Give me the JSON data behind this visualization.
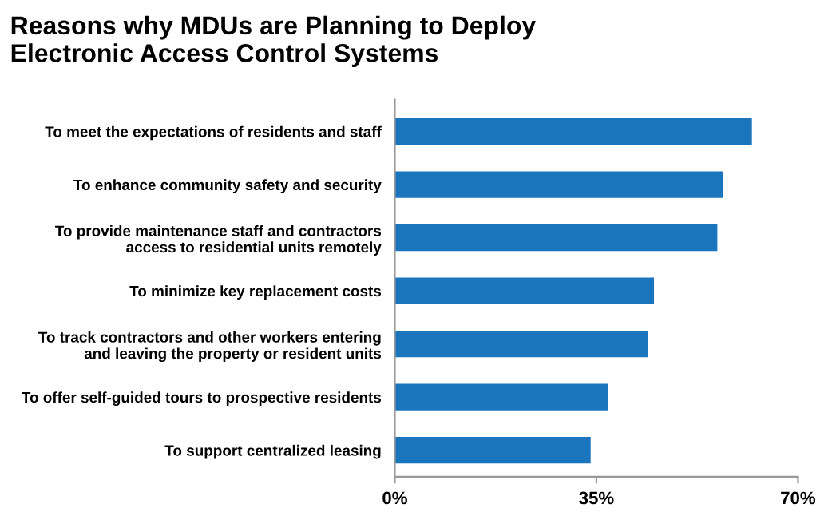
{
  "chart_data": {
    "type": "bar",
    "orientation": "horizontal",
    "title": "Reasons why MDUs are Planning to Deploy\nElectronic Access Control Systems",
    "categories": [
      "To meet the expectations of residents and staff",
      "To enhance community safety and security",
      "To provide maintenance staff and contractors\naccess to residential units remotely",
      "To minimize key replacement costs",
      "To track contractors and other workers entering\nand leaving the property or resident units",
      "To offer self-guided tours to prospective residents",
      "To support centralized leasing"
    ],
    "values": [
      62,
      57,
      56,
      45,
      44,
      37,
      34
    ],
    "color": "#1a75bc",
    "xlim": [
      0,
      70
    ],
    "xticks": [
      {
        "value": 0,
        "label": "0%"
      },
      {
        "value": 35,
        "label": "35%"
      },
      {
        "value": 70,
        "label": "70%"
      }
    ],
    "grid": false,
    "legend": false
  }
}
